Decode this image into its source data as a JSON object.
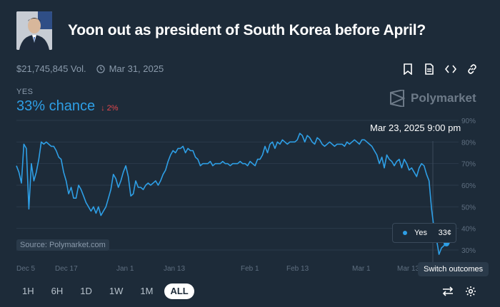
{
  "market": {
    "title": "Yoon out as president of South Korea before April?",
    "volume": "$21,745,845 Vol.",
    "end_date": "Mar 31, 2025"
  },
  "outcome": {
    "label": "YES",
    "chance": "33% chance",
    "delta": "↓ 2%"
  },
  "brand": {
    "name": "Polymarket"
  },
  "hover": {
    "date": "Mar 23, 2025 9:00 pm",
    "outcome": "Yes",
    "price": "33¢"
  },
  "source": "Source: Polymarket.com",
  "switch_tooltip": "Switch outcomes",
  "time_ranges": [
    "1H",
    "6H",
    "1D",
    "1W",
    "1M",
    "ALL"
  ],
  "active_range": "ALL",
  "colors": {
    "background": "#1d2b39",
    "line": "#2e9fe6",
    "negative": "#e5484d",
    "muted": "#8a9aab"
  },
  "icons": {
    "header": [
      "bookmark-icon",
      "document-icon",
      "code-icon",
      "link-icon"
    ],
    "bottom": [
      "swap-icon",
      "gear-icon"
    ]
  },
  "chart_data": {
    "type": "line",
    "x_ticks": [
      "Dec 5",
      "Dec 17",
      "Jan 1",
      "Jan 13",
      "Feb 1",
      "Feb 13",
      "Mar 1",
      "Mar 13"
    ],
    "y_ticks": [
      "30%",
      "40%",
      "50%",
      "60%",
      "70%",
      "80%",
      "90%"
    ],
    "ylim": [
      0.27,
      0.92
    ],
    "grid": true,
    "series": [
      {
        "values": [
          0.69,
          0.66,
          0.61,
          0.79,
          0.77,
          0.49,
          0.7,
          0.62,
          0.66,
          0.72,
          0.8,
          0.79,
          0.8,
          0.79,
          0.78,
          0.78,
          0.76,
          0.73,
          0.72,
          0.66,
          0.62,
          0.56,
          0.59,
          0.54,
          0.54,
          0.6,
          0.58,
          0.55,
          0.52,
          0.5,
          0.48,
          0.5,
          0.47,
          0.5,
          0.46,
          0.48,
          0.5,
          0.54,
          0.58,
          0.65,
          0.63,
          0.59,
          0.62,
          0.66,
          0.69,
          0.64,
          0.55,
          0.56,
          0.62,
          0.59,
          0.59,
          0.58,
          0.6,
          0.61,
          0.6,
          0.61,
          0.62,
          0.6,
          0.62,
          0.65,
          0.67,
          0.71,
          0.74,
          0.76,
          0.75,
          0.77,
          0.77,
          0.78,
          0.75,
          0.77,
          0.76,
          0.76,
          0.73,
          0.72,
          0.69,
          0.7,
          0.7,
          0.7,
          0.71,
          0.69,
          0.7,
          0.7,
          0.7,
          0.71,
          0.7,
          0.7,
          0.69,
          0.7,
          0.7,
          0.7,
          0.71,
          0.7,
          0.7,
          0.69,
          0.71,
          0.7,
          0.69,
          0.72,
          0.72,
          0.74,
          0.78,
          0.75,
          0.79,
          0.8,
          0.77,
          0.8,
          0.79,
          0.81,
          0.8,
          0.79,
          0.8,
          0.8,
          0.8,
          0.81,
          0.84,
          0.83,
          0.8,
          0.83,
          0.82,
          0.8,
          0.79,
          0.82,
          0.81,
          0.79,
          0.78,
          0.79,
          0.8,
          0.79,
          0.78,
          0.79,
          0.79,
          0.79,
          0.78,
          0.8,
          0.79,
          0.8,
          0.81,
          0.8,
          0.79,
          0.81,
          0.81,
          0.8,
          0.79,
          0.78,
          0.76,
          0.74,
          0.7,
          0.73,
          0.68,
          0.74,
          0.72,
          0.71,
          0.69,
          0.71,
          0.72,
          0.68,
          0.72,
          0.7,
          0.67,
          0.68,
          0.66,
          0.64,
          0.68,
          0.7,
          0.69,
          0.65,
          0.62,
          0.49,
          0.4,
          0.35,
          0.28,
          0.31,
          0.32,
          0.33,
          0.33,
          0.35
        ],
        "color": "#2e9fe6"
      }
    ]
  }
}
